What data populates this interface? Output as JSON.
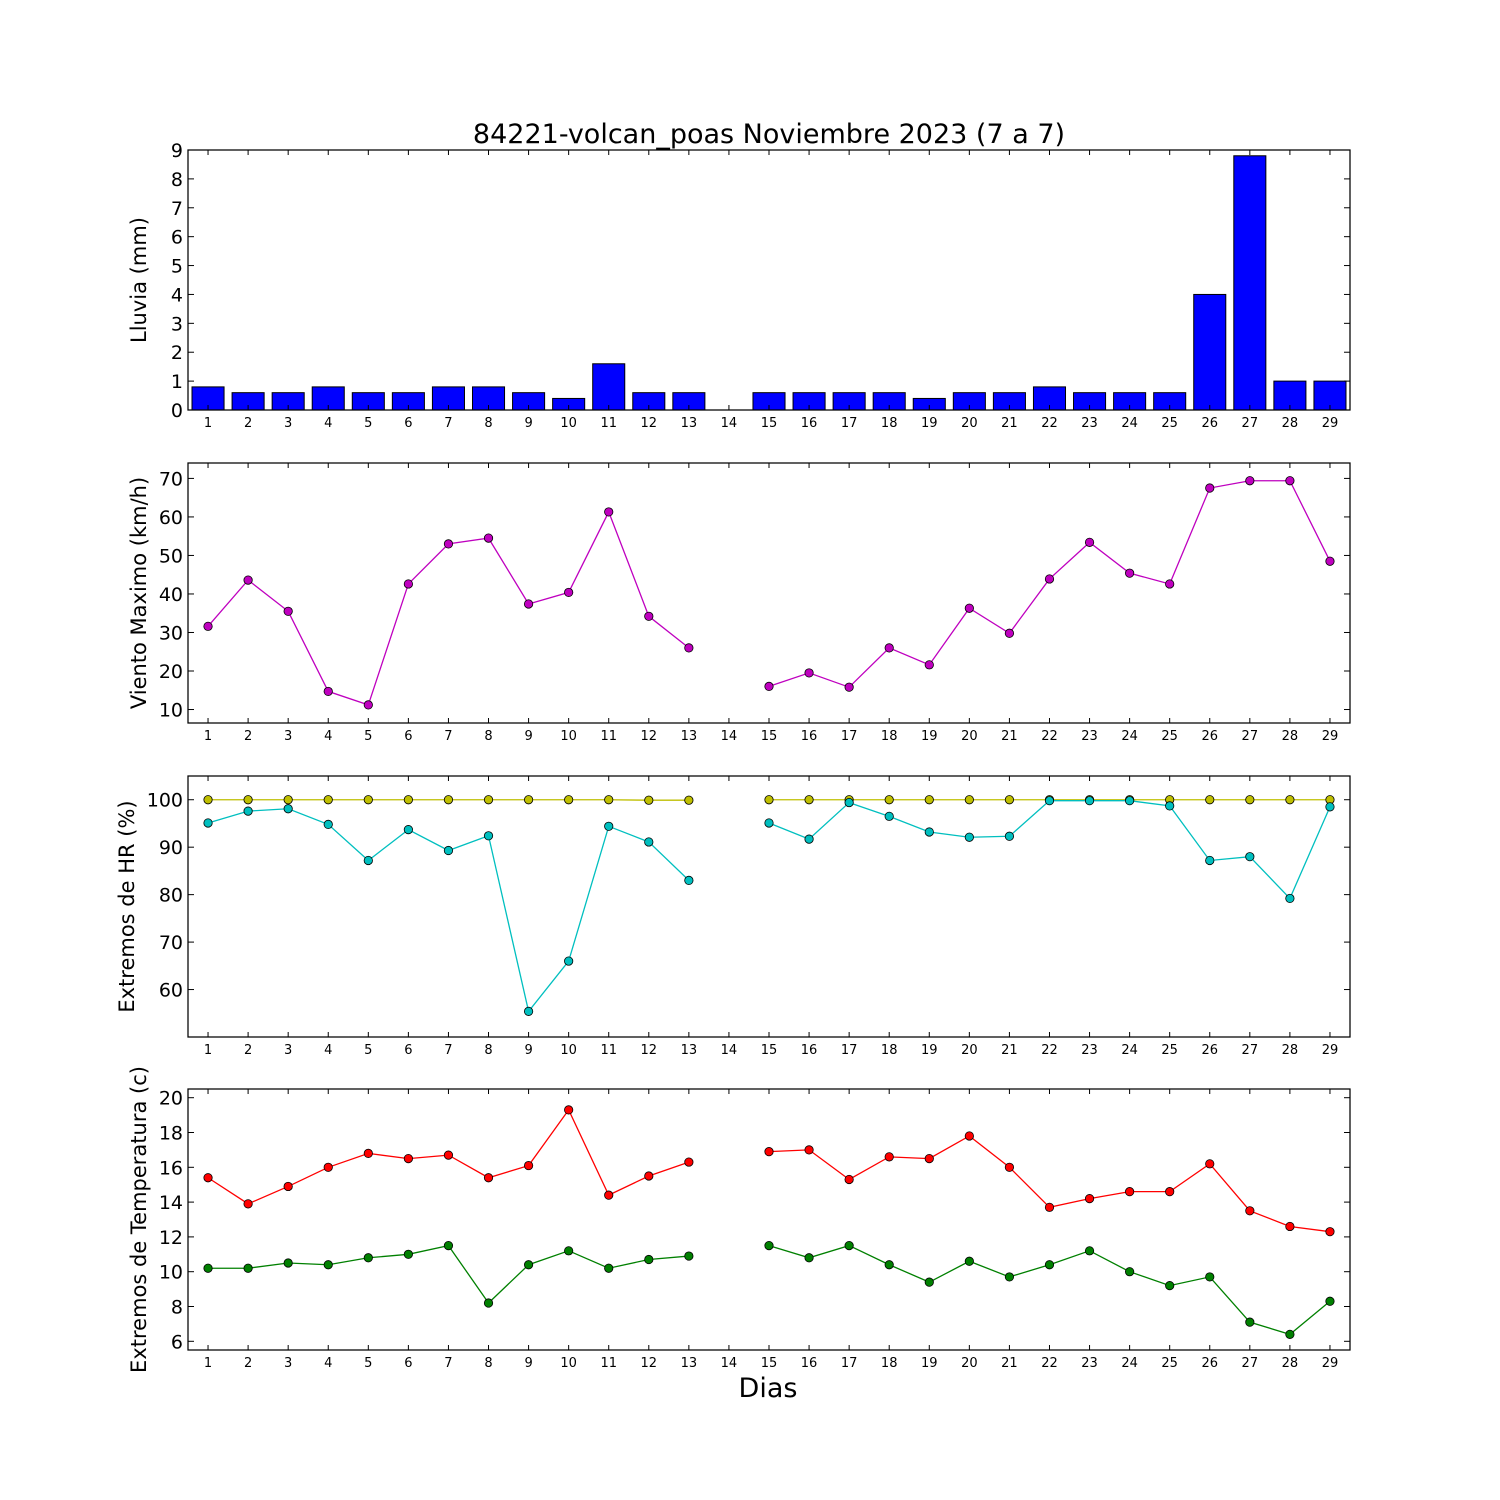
{
  "chart_data": [
    {
      "type": "bar",
      "title": "84221-volcan_poas Noviembre 2023  (7 a 7)",
      "ylabel": "Lluvia (mm)",
      "xlabel": "",
      "ylim": [
        0,
        9
      ],
      "yticks": [
        0,
        1,
        2,
        3,
        4,
        5,
        6,
        7,
        8,
        9
      ],
      "x": [
        1,
        2,
        3,
        4,
        5,
        6,
        7,
        8,
        9,
        10,
        11,
        12,
        13,
        14,
        15,
        16,
        17,
        18,
        19,
        20,
        21,
        22,
        23,
        24,
        25,
        26,
        27,
        28,
        29
      ],
      "values": [
        0.8,
        0.6,
        0.6,
        0.8,
        0.6,
        0.6,
        0.8,
        0.8,
        0.6,
        0.4,
        1.6,
        0.6,
        0.6,
        0,
        0.6,
        0.6,
        0.6,
        0.6,
        0.4,
        0.6,
        0.6,
        0.8,
        0.6,
        0.6,
        0.6,
        4.0,
        8.8,
        1.0,
        1.0
      ],
      "color": "#0000ff"
    },
    {
      "type": "line",
      "ylabel": "Viento Maximo (km/h)",
      "ylim": [
        6.5,
        74
      ],
      "yticks": [
        10,
        20,
        30,
        40,
        50,
        60,
        70
      ],
      "x": [
        1,
        2,
        3,
        4,
        5,
        6,
        7,
        8,
        9,
        10,
        11,
        12,
        13,
        14,
        15,
        16,
        17,
        18,
        19,
        20,
        21,
        22,
        23,
        24,
        25,
        26,
        27,
        28,
        29
      ],
      "series": [
        {
          "color": "#bf00bf",
          "values": [
            31.6,
            43.6,
            35.5,
            14.7,
            11.2,
            42.6,
            53.0,
            54.5,
            37.4,
            40.4,
            61.3,
            34.2,
            26.0,
            null,
            16.0,
            19.5,
            15.8,
            26.0,
            21.6,
            36.3,
            29.8,
            43.9,
            53.4,
            45.4,
            42.6,
            67.5,
            69.4,
            69.4,
            48.5
          ]
        }
      ]
    },
    {
      "type": "line",
      "ylabel": "Extremos de HR (%)",
      "ylim": [
        50,
        105
      ],
      "yticks": [
        60,
        70,
        80,
        90,
        100
      ],
      "x": [
        1,
        2,
        3,
        4,
        5,
        6,
        7,
        8,
        9,
        10,
        11,
        12,
        13,
        14,
        15,
        16,
        17,
        18,
        19,
        20,
        21,
        22,
        23,
        24,
        25,
        26,
        27,
        28,
        29
      ],
      "series": [
        {
          "color": "#bfbf00",
          "values": [
            100,
            100,
            100,
            100,
            100,
            100,
            100,
            100,
            100,
            100,
            100,
            99.9,
            99.9,
            null,
            100,
            100,
            100,
            100,
            100,
            100,
            100,
            100,
            100,
            100,
            100,
            100,
            100,
            100,
            100
          ]
        },
        {
          "color": "#00bfbf",
          "values": [
            95.1,
            97.6,
            98.1,
            94.8,
            87.2,
            93.7,
            89.3,
            92.4,
            55.4,
            66.0,
            94.4,
            91.1,
            83.0,
            null,
            95.1,
            91.7,
            99.4,
            96.5,
            93.2,
            92.1,
            92.3,
            99.8,
            99.8,
            99.8,
            98.7,
            87.2,
            88.0,
            79.2,
            98.5
          ]
        }
      ]
    },
    {
      "type": "line",
      "ylabel": "Extremos de Temperatura (c)",
      "xlabel": "Dias",
      "ylim": [
        5.5,
        20.5
      ],
      "yticks": [
        6,
        8,
        10,
        12,
        14,
        16,
        18,
        20
      ],
      "x": [
        1,
        2,
        3,
        4,
        5,
        6,
        7,
        8,
        9,
        10,
        11,
        12,
        13,
        14,
        15,
        16,
        17,
        18,
        19,
        20,
        21,
        22,
        23,
        24,
        25,
        26,
        27,
        28,
        29
      ],
      "series": [
        {
          "color": "#ff0000",
          "values": [
            15.4,
            13.9,
            14.9,
            16.0,
            16.8,
            16.5,
            16.7,
            15.4,
            16.1,
            19.3,
            14.4,
            15.5,
            16.3,
            null,
            16.9,
            17.0,
            15.3,
            16.6,
            16.5,
            17.8,
            16.0,
            13.7,
            14.2,
            14.6,
            14.6,
            16.2,
            13.5,
            12.6,
            12.3
          ]
        },
        {
          "color": "#008000",
          "values": [
            10.2,
            10.2,
            10.5,
            10.4,
            10.8,
            11.0,
            11.5,
            8.2,
            10.4,
            11.2,
            10.2,
            10.7,
            10.9,
            null,
            11.5,
            10.8,
            11.5,
            10.4,
            9.4,
            10.6,
            9.7,
            10.4,
            11.2,
            10.0,
            9.2,
            9.7,
            7.1,
            6.4,
            8.3
          ]
        }
      ]
    }
  ]
}
